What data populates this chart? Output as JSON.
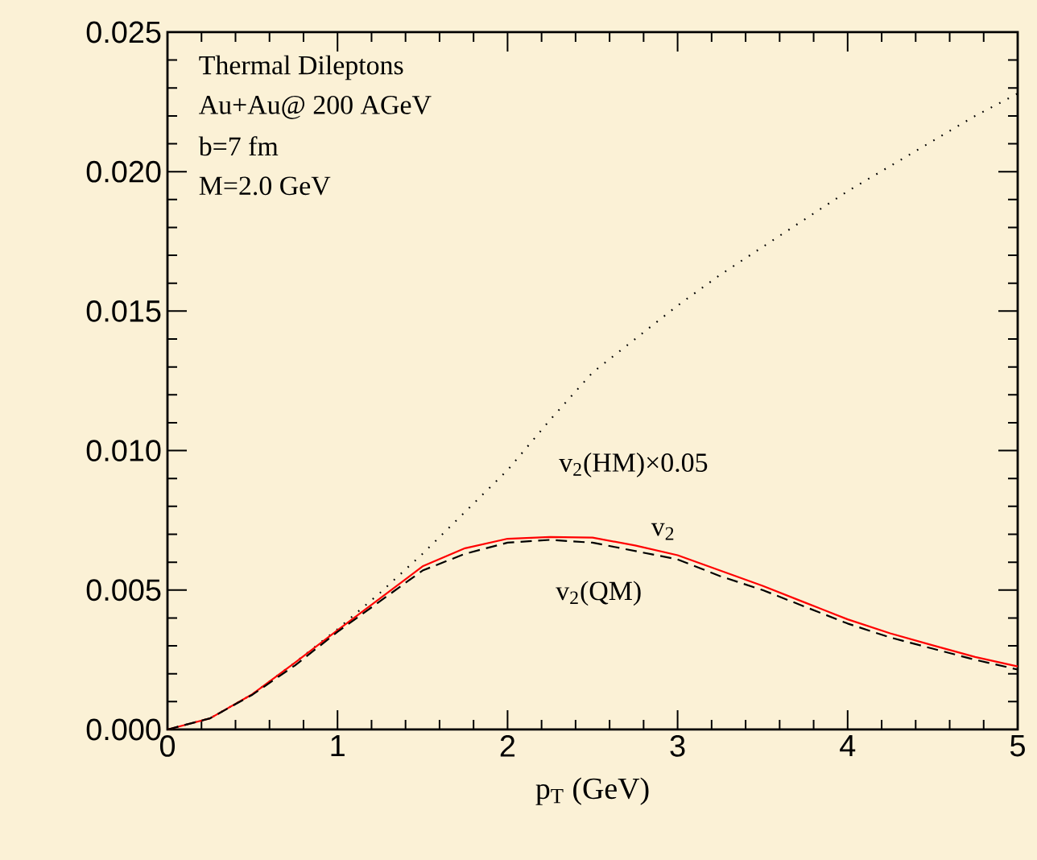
{
  "chart_data": {
    "type": "line",
    "xlabel": "p$_{T}$ (GeV)",
    "annotations": [
      "Thermal Dileptons",
      "Au+Au@ 200 AGeV",
      "b=7 fm",
      "M=2.0 GeV"
    ],
    "x": [
      0,
      0.25,
      0.5,
      0.75,
      1,
      1.25,
      1.5,
      1.75,
      2,
      2.25,
      2.5,
      2.75,
      3,
      3.25,
      3.5,
      3.75,
      4,
      4.25,
      4.5,
      4.75,
      5
    ],
    "series": [
      {
        "name": "v$_{2}$(HM)×0.05",
        "color": "#000000",
        "line_style": "dotted",
        "values": [
          0,
          0.0004,
          0.00127,
          0.0024,
          0.0036,
          0.0049,
          0.0063,
          0.0078,
          0.0093,
          0.0111,
          0.0128,
          0.014,
          0.0152,
          0.0163,
          0.0173,
          0.0183,
          0.0193,
          0.0202,
          0.0211,
          0.022,
          0.0228
        ]
      },
      {
        "name": "v$_{2}$",
        "color": "#ff0000",
        "line_style": "solid",
        "values": [
          0,
          0.0004,
          0.00127,
          0.0024,
          0.00356,
          0.0047,
          0.00585,
          0.0065,
          0.00684,
          0.0069,
          0.00688,
          0.0066,
          0.00625,
          0.0057,
          0.00515,
          0.00455,
          0.00395,
          0.00345,
          0.00302,
          0.0026,
          0.00226
        ]
      },
      {
        "name": "v$_{2}$(QM)",
        "color": "#000000",
        "line_style": "dashed",
        "values": [
          0,
          0.0004,
          0.00125,
          0.0023,
          0.0035,
          0.0046,
          0.0057,
          0.0063,
          0.0067,
          0.0068,
          0.0067,
          0.0064,
          0.0061,
          0.0055,
          0.005,
          0.0044,
          0.0038,
          0.0033,
          0.0029,
          0.0025,
          0.00215
        ]
      }
    ],
    "xlim": [
      0,
      5
    ],
    "ylim": [
      0,
      0.025
    ],
    "xticks": [
      0,
      1,
      2,
      3,
      4,
      5
    ],
    "yticks": [
      {
        "value": 0,
        "label": "0.000"
      },
      {
        "value": 0.005,
        "label": "0.005"
      },
      {
        "value": 0.01,
        "label": "0.010"
      },
      {
        "value": 0.015,
        "label": "0.015"
      },
      {
        "value": 0.02,
        "label": "0.020"
      },
      {
        "value": 0.025,
        "label": "0.025"
      }
    ],
    "grid": false,
    "marker": "none"
  }
}
